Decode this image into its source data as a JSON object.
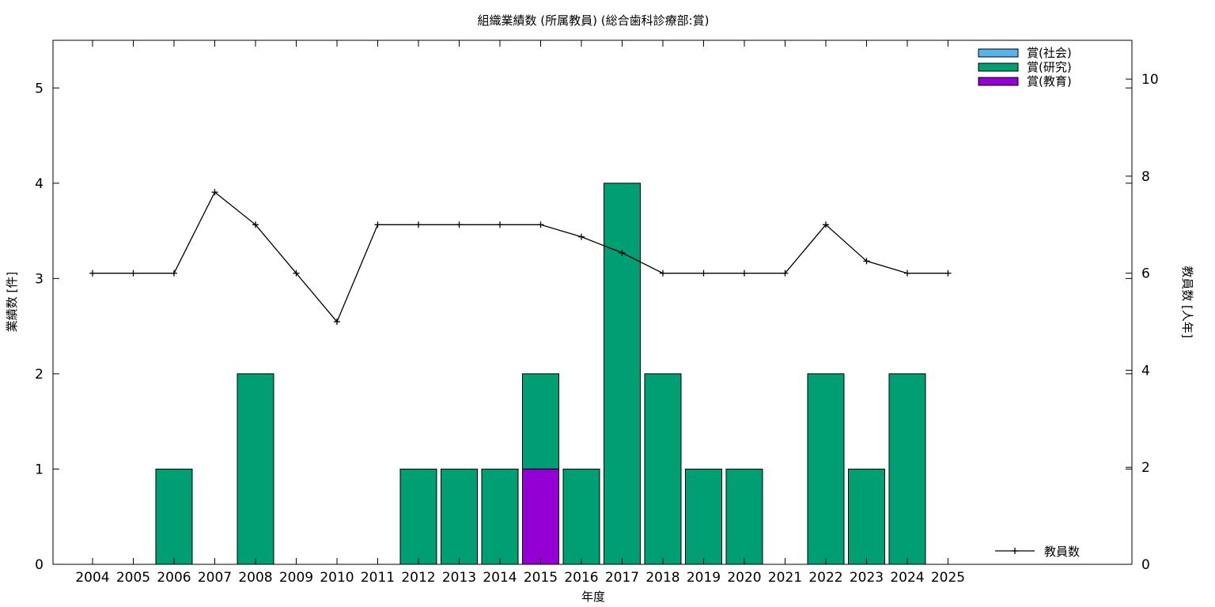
{
  "chart_data": {
    "type": "bar",
    "title": "組織業績数 (所属教員) (総合歯科診療部:賞)",
    "xlabel": "年度",
    "ylabel": "業績数 [件]",
    "y2label": "教員数 [人年]",
    "categories": [
      "2004",
      "2005",
      "2006",
      "2007",
      "2008",
      "2009",
      "2010",
      "2011",
      "2012",
      "2013",
      "2014",
      "2015",
      "2016",
      "2017",
      "2018",
      "2019",
      "2020",
      "2021",
      "2022",
      "2023",
      "2024",
      "2025"
    ],
    "ylim": [
      0,
      5.5
    ],
    "y2lim": [
      0,
      10.8
    ],
    "yticks": [
      0,
      1,
      2,
      3,
      4,
      5
    ],
    "y2ticks": [
      0,
      2,
      4,
      6,
      8,
      10
    ],
    "stacked": true,
    "series": [
      {
        "name": "賞(社会)",
        "color": "#56b4e9",
        "values": [
          0,
          0,
          0,
          0,
          0,
          0,
          0,
          0,
          0,
          0,
          0,
          0,
          0,
          0,
          0,
          0,
          0,
          0,
          0,
          0,
          0,
          0
        ]
      },
      {
        "name": "賞(研究)",
        "color": "#009e73",
        "values": [
          0,
          0,
          1,
          0,
          2,
          0,
          0,
          0,
          1,
          1,
          1,
          1,
          1,
          4,
          2,
          1,
          1,
          0,
          2,
          1,
          2,
          0
        ]
      },
      {
        "name": "賞(教育)",
        "color": "#9400d3",
        "values": [
          0,
          0,
          0,
          0,
          0,
          0,
          0,
          0,
          0,
          0,
          0,
          1,
          0,
          0,
          0,
          0,
          0,
          0,
          0,
          0,
          0,
          0
        ]
      }
    ],
    "line_series": {
      "name": "教員数",
      "axis": "y2",
      "color": "#000000",
      "values": [
        6,
        6,
        6,
        7.67,
        7,
        6,
        5,
        7,
        7,
        7,
        7,
        7,
        6.75,
        6.42,
        6,
        6,
        6,
        6,
        7,
        6.25,
        6,
        6
      ]
    },
    "legend_position": "top-right",
    "line_legend_position": "bottom-right",
    "grid": false
  }
}
